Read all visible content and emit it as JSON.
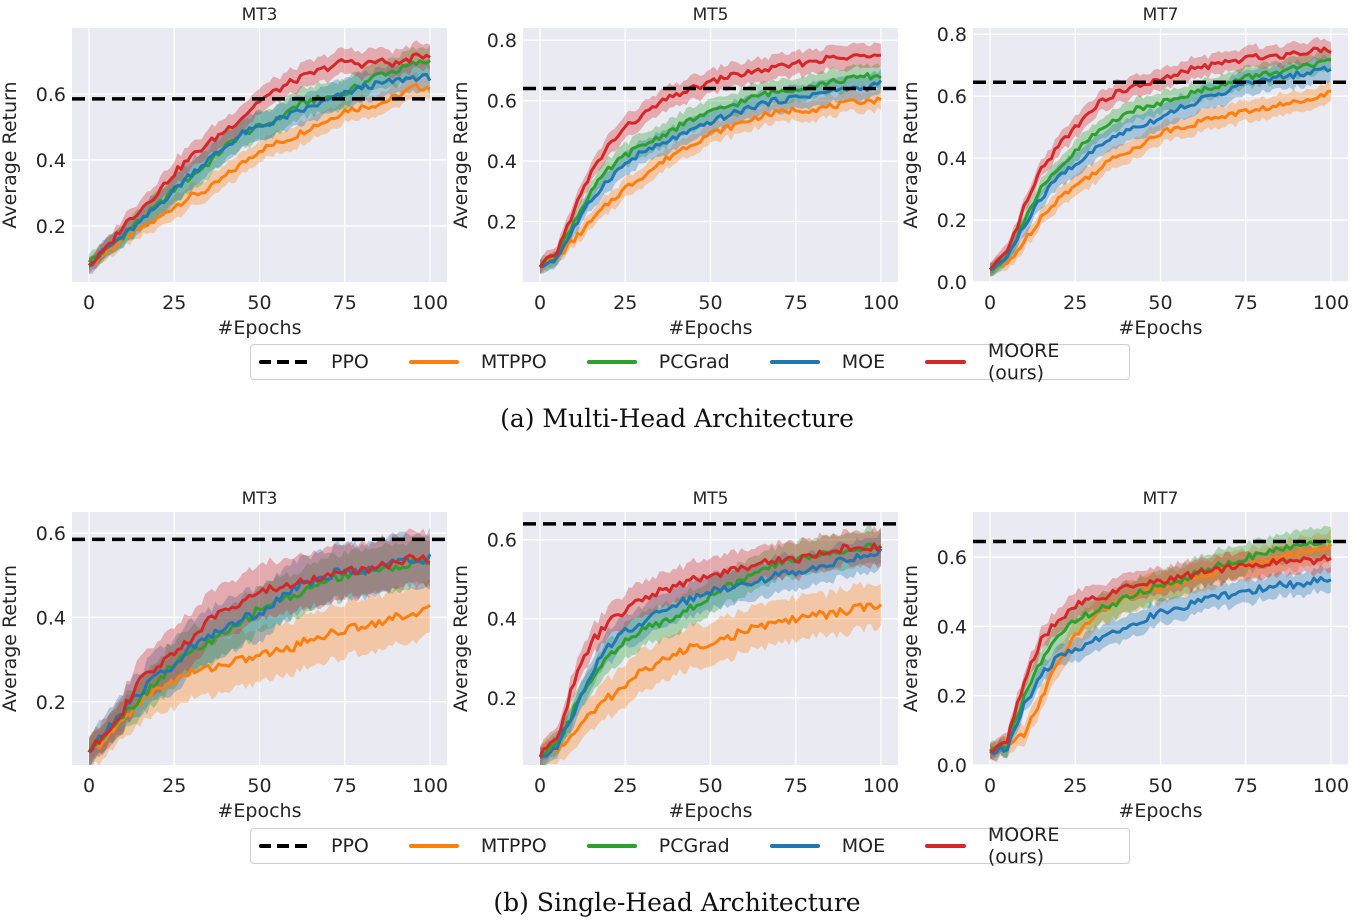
{
  "figure": {
    "captions": [
      "(a) Multi-Head Architecture",
      "(b) Single-Head Architecture"
    ],
    "legend": [
      {
        "label": "PPO",
        "color": "#000000",
        "style": "dashed"
      },
      {
        "label": "MTPPO",
        "color": "#ff7f0e",
        "style": "solid"
      },
      {
        "label": "PCGrad",
        "color": "#2ca02c",
        "style": "solid"
      },
      {
        "label": "MOE",
        "color": "#1f77b4",
        "style": "solid"
      },
      {
        "label": "MOORE (ours)",
        "color": "#d62728",
        "style": "solid"
      }
    ],
    "plot_bg": "#eaeaf2",
    "grid_color": "#ffffff"
  },
  "chart_data": [
    {
      "type": "line",
      "group": "(a) Multi-Head Architecture",
      "title": "MT3",
      "xlabel": "#Epochs",
      "ylabel": "Average Return",
      "xlim": [
        -5,
        105
      ],
      "ylim": [
        0.03,
        0.8
      ],
      "xticks": [
        0,
        25,
        50,
        75,
        100
      ],
      "yticks": [
        0.2,
        0.4,
        0.6
      ],
      "grid": true,
      "ppo": 0.585,
      "x": [
        0,
        5,
        10,
        15,
        20,
        25,
        30,
        35,
        40,
        45,
        50,
        55,
        60,
        65,
        70,
        75,
        80,
        85,
        90,
        95,
        100
      ],
      "series": [
        {
          "name": "MTPPO",
          "values": [
            0.08,
            0.12,
            0.16,
            0.19,
            0.22,
            0.26,
            0.29,
            0.31,
            0.35,
            0.39,
            0.43,
            0.45,
            0.47,
            0.5,
            0.52,
            0.55,
            0.56,
            0.57,
            0.59,
            0.62,
            0.62
          ],
          "band": 0.03
        },
        {
          "name": "PCGrad",
          "values": [
            0.09,
            0.13,
            0.17,
            0.22,
            0.26,
            0.31,
            0.35,
            0.39,
            0.44,
            0.48,
            0.5,
            0.52,
            0.56,
            0.58,
            0.59,
            0.6,
            0.63,
            0.66,
            0.67,
            0.69,
            0.7
          ],
          "band": 0.04
        },
        {
          "name": "MOE",
          "values": [
            0.08,
            0.13,
            0.17,
            0.21,
            0.26,
            0.31,
            0.36,
            0.4,
            0.44,
            0.48,
            0.5,
            0.52,
            0.54,
            0.56,
            0.58,
            0.6,
            0.62,
            0.63,
            0.64,
            0.65,
            0.65
          ],
          "band": 0.04
        },
        {
          "name": "MOORE (ours)",
          "values": [
            0.08,
            0.13,
            0.2,
            0.25,
            0.3,
            0.36,
            0.41,
            0.45,
            0.49,
            0.53,
            0.58,
            0.61,
            0.64,
            0.66,
            0.68,
            0.7,
            0.69,
            0.7,
            0.69,
            0.71,
            0.72
          ],
          "band": 0.035
        }
      ]
    },
    {
      "type": "line",
      "group": "(a) Multi-Head Architecture",
      "title": "MT5",
      "xlabel": "#Epochs",
      "ylabel": "Average Return",
      "xlim": [
        -5,
        105
      ],
      "ylim": [
        0.0,
        0.84
      ],
      "xticks": [
        0,
        25,
        50,
        75,
        100
      ],
      "yticks": [
        0.2,
        0.4,
        0.6,
        0.8
      ],
      "grid": true,
      "ppo": 0.64,
      "x": [
        0,
        5,
        10,
        15,
        20,
        25,
        30,
        35,
        40,
        45,
        50,
        55,
        60,
        65,
        70,
        75,
        80,
        85,
        90,
        95,
        100
      ],
      "series": [
        {
          "name": "MTPPO",
          "values": [
            0.05,
            0.08,
            0.14,
            0.2,
            0.26,
            0.31,
            0.35,
            0.39,
            0.43,
            0.46,
            0.49,
            0.51,
            0.53,
            0.55,
            0.56,
            0.57,
            0.57,
            0.58,
            0.59,
            0.6,
            0.6
          ],
          "band": 0.03
        },
        {
          "name": "PCGrad",
          "values": [
            0.05,
            0.09,
            0.2,
            0.3,
            0.37,
            0.42,
            0.45,
            0.48,
            0.51,
            0.54,
            0.56,
            0.58,
            0.6,
            0.62,
            0.63,
            0.64,
            0.65,
            0.66,
            0.67,
            0.68,
            0.68
          ],
          "band": 0.035
        },
        {
          "name": "MOE",
          "values": [
            0.05,
            0.08,
            0.18,
            0.27,
            0.34,
            0.39,
            0.43,
            0.45,
            0.48,
            0.5,
            0.53,
            0.55,
            0.57,
            0.59,
            0.6,
            0.61,
            0.62,
            0.63,
            0.64,
            0.64,
            0.66
          ],
          "band": 0.035
        },
        {
          "name": "MOORE (ours)",
          "values": [
            0.05,
            0.1,
            0.24,
            0.36,
            0.45,
            0.51,
            0.55,
            0.59,
            0.62,
            0.64,
            0.66,
            0.68,
            0.69,
            0.7,
            0.71,
            0.72,
            0.73,
            0.74,
            0.74,
            0.75,
            0.76
          ],
          "band": 0.035
        }
      ]
    },
    {
      "type": "line",
      "group": "(a) Multi-Head Architecture",
      "title": "MT7",
      "xlabel": "#Epochs",
      "ylabel": "Average Return",
      "xlim": [
        -5,
        105
      ],
      "ylim": [
        0.0,
        0.82
      ],
      "xticks": [
        0,
        25,
        50,
        75,
        100
      ],
      "yticks": [
        0.0,
        0.2,
        0.4,
        0.6,
        0.8
      ],
      "grid": true,
      "ppo": 0.645,
      "x": [
        0,
        5,
        10,
        15,
        20,
        25,
        30,
        35,
        40,
        45,
        50,
        55,
        60,
        65,
        70,
        75,
        80,
        85,
        90,
        95,
        100
      ],
      "series": [
        {
          "name": "MTPPO",
          "values": [
            0.04,
            0.06,
            0.13,
            0.21,
            0.27,
            0.31,
            0.35,
            0.39,
            0.42,
            0.45,
            0.48,
            0.5,
            0.51,
            0.53,
            0.54,
            0.55,
            0.56,
            0.57,
            0.58,
            0.6,
            0.61
          ],
          "band": 0.03
        },
        {
          "name": "PCGrad",
          "values": [
            0.04,
            0.08,
            0.2,
            0.3,
            0.36,
            0.42,
            0.47,
            0.51,
            0.55,
            0.56,
            0.58,
            0.6,
            0.61,
            0.63,
            0.64,
            0.66,
            0.67,
            0.68,
            0.69,
            0.7,
            0.71
          ],
          "band": 0.03
        },
        {
          "name": "MOE",
          "values": [
            0.04,
            0.08,
            0.18,
            0.27,
            0.34,
            0.38,
            0.42,
            0.46,
            0.49,
            0.51,
            0.53,
            0.56,
            0.58,
            0.6,
            0.62,
            0.64,
            0.65,
            0.66,
            0.67,
            0.68,
            0.69
          ],
          "band": 0.035
        },
        {
          "name": "MOORE (ours)",
          "values": [
            0.04,
            0.09,
            0.24,
            0.36,
            0.44,
            0.5,
            0.56,
            0.6,
            0.62,
            0.64,
            0.65,
            0.67,
            0.69,
            0.7,
            0.71,
            0.72,
            0.73,
            0.73,
            0.74,
            0.75,
            0.75
          ],
          "band": 0.03
        }
      ]
    },
    {
      "type": "line",
      "group": "(b) Single-Head Architecture",
      "title": "MT3",
      "xlabel": "#Epochs",
      "ylabel": "Average Return",
      "xlim": [
        -5,
        105
      ],
      "ylim": [
        0.05,
        0.65
      ],
      "xticks": [
        0,
        25,
        50,
        75,
        100
      ],
      "yticks": [
        0.2,
        0.4,
        0.6
      ],
      "grid": true,
      "ppo": 0.585,
      "x": [
        0,
        5,
        10,
        15,
        20,
        25,
        30,
        35,
        40,
        45,
        50,
        55,
        60,
        65,
        70,
        75,
        80,
        85,
        90,
        95,
        100
      ],
      "series": [
        {
          "name": "MTPPO",
          "values": [
            0.08,
            0.11,
            0.16,
            0.2,
            0.23,
            0.25,
            0.27,
            0.28,
            0.29,
            0.3,
            0.31,
            0.32,
            0.33,
            0.35,
            0.36,
            0.37,
            0.38,
            0.39,
            0.4,
            0.41,
            0.42
          ],
          "band": 0.06
        },
        {
          "name": "PCGrad",
          "values": [
            0.08,
            0.13,
            0.17,
            0.21,
            0.25,
            0.29,
            0.32,
            0.34,
            0.36,
            0.39,
            0.42,
            0.44,
            0.45,
            0.47,
            0.49,
            0.5,
            0.51,
            0.51,
            0.52,
            0.53,
            0.53
          ],
          "band": 0.05
        },
        {
          "name": "MOE",
          "values": [
            0.08,
            0.13,
            0.18,
            0.22,
            0.27,
            0.28,
            0.33,
            0.36,
            0.37,
            0.4,
            0.41,
            0.44,
            0.47,
            0.48,
            0.5,
            0.51,
            0.51,
            0.52,
            0.54,
            0.53,
            0.54
          ],
          "band": 0.06
        },
        {
          "name": "MOORE (ours)",
          "values": [
            0.08,
            0.13,
            0.18,
            0.25,
            0.28,
            0.32,
            0.35,
            0.39,
            0.42,
            0.44,
            0.46,
            0.47,
            0.48,
            0.49,
            0.5,
            0.51,
            0.51,
            0.52,
            0.53,
            0.54,
            0.54
          ],
          "band": 0.06
        }
      ]
    },
    {
      "type": "line",
      "group": "(b) Single-Head Architecture",
      "title": "MT5",
      "xlabel": "#Epochs",
      "ylabel": "Average Return",
      "xlim": [
        -5,
        105
      ],
      "ylim": [
        0.03,
        0.67
      ],
      "xticks": [
        0,
        25,
        50,
        75,
        100
      ],
      "yticks": [
        0.2,
        0.4,
        0.6
      ],
      "grid": true,
      "ppo": 0.64,
      "x": [
        0,
        5,
        10,
        15,
        20,
        25,
        30,
        35,
        40,
        45,
        50,
        55,
        60,
        65,
        70,
        75,
        80,
        85,
        90,
        95,
        100
      ],
      "series": [
        {
          "name": "MTPPO",
          "values": [
            0.05,
            0.07,
            0.11,
            0.16,
            0.2,
            0.23,
            0.27,
            0.29,
            0.31,
            0.33,
            0.34,
            0.35,
            0.37,
            0.38,
            0.39,
            0.4,
            0.41,
            0.41,
            0.42,
            0.43,
            0.43
          ],
          "band": 0.05
        },
        {
          "name": "PCGrad",
          "values": [
            0.05,
            0.08,
            0.17,
            0.25,
            0.31,
            0.34,
            0.37,
            0.39,
            0.41,
            0.43,
            0.46,
            0.48,
            0.5,
            0.52,
            0.54,
            0.55,
            0.56,
            0.57,
            0.57,
            0.58,
            0.58
          ],
          "band": 0.04
        },
        {
          "name": "MOE",
          "values": [
            0.05,
            0.08,
            0.16,
            0.26,
            0.33,
            0.37,
            0.39,
            0.42,
            0.44,
            0.45,
            0.47,
            0.48,
            0.49,
            0.5,
            0.51,
            0.52,
            0.53,
            0.54,
            0.55,
            0.56,
            0.57
          ],
          "band": 0.04
        },
        {
          "name": "MOORE (ours)",
          "values": [
            0.05,
            0.1,
            0.24,
            0.34,
            0.39,
            0.42,
            0.45,
            0.47,
            0.48,
            0.5,
            0.51,
            0.52,
            0.53,
            0.54,
            0.55,
            0.55,
            0.56,
            0.57,
            0.58,
            0.58,
            0.58
          ],
          "band": 0.04
        }
      ]
    },
    {
      "type": "line",
      "group": "(b) Single-Head Architecture",
      "title": "MT7",
      "xlabel": "#Epochs",
      "ylabel": "Average Return",
      "xlim": [
        -5,
        105
      ],
      "ylim": [
        0.0,
        0.73
      ],
      "xticks": [
        0,
        25,
        50,
        75,
        100
      ],
      "yticks": [
        0.0,
        0.2,
        0.4,
        0.6
      ],
      "grid": true,
      "ppo": 0.645,
      "x": [
        0,
        5,
        10,
        15,
        20,
        25,
        30,
        35,
        40,
        45,
        50,
        55,
        60,
        65,
        70,
        75,
        80,
        85,
        90,
        95,
        100
      ],
      "series": [
        {
          "name": "MTPPO",
          "values": [
            0.04,
            0.05,
            0.09,
            0.19,
            0.3,
            0.37,
            0.43,
            0.46,
            0.48,
            0.5,
            0.51,
            0.52,
            0.54,
            0.55,
            0.57,
            0.58,
            0.59,
            0.6,
            0.61,
            0.62,
            0.63
          ],
          "band": 0.04
        },
        {
          "name": "PCGrad",
          "values": [
            0.04,
            0.05,
            0.2,
            0.3,
            0.37,
            0.42,
            0.44,
            0.46,
            0.48,
            0.5,
            0.52,
            0.53,
            0.55,
            0.57,
            0.58,
            0.6,
            0.61,
            0.62,
            0.63,
            0.64,
            0.65
          ],
          "band": 0.04
        },
        {
          "name": "MOE",
          "values": [
            0.04,
            0.05,
            0.17,
            0.26,
            0.31,
            0.33,
            0.36,
            0.38,
            0.4,
            0.42,
            0.44,
            0.45,
            0.47,
            0.48,
            0.49,
            0.5,
            0.51,
            0.52,
            0.52,
            0.53,
            0.54
          ],
          "band": 0.03
        },
        {
          "name": "MOORE (ours)",
          "values": [
            0.04,
            0.07,
            0.24,
            0.36,
            0.42,
            0.46,
            0.48,
            0.49,
            0.51,
            0.52,
            0.53,
            0.54,
            0.55,
            0.56,
            0.57,
            0.58,
            0.58,
            0.59,
            0.59,
            0.59,
            0.6
          ],
          "band": 0.035
        }
      ]
    }
  ]
}
